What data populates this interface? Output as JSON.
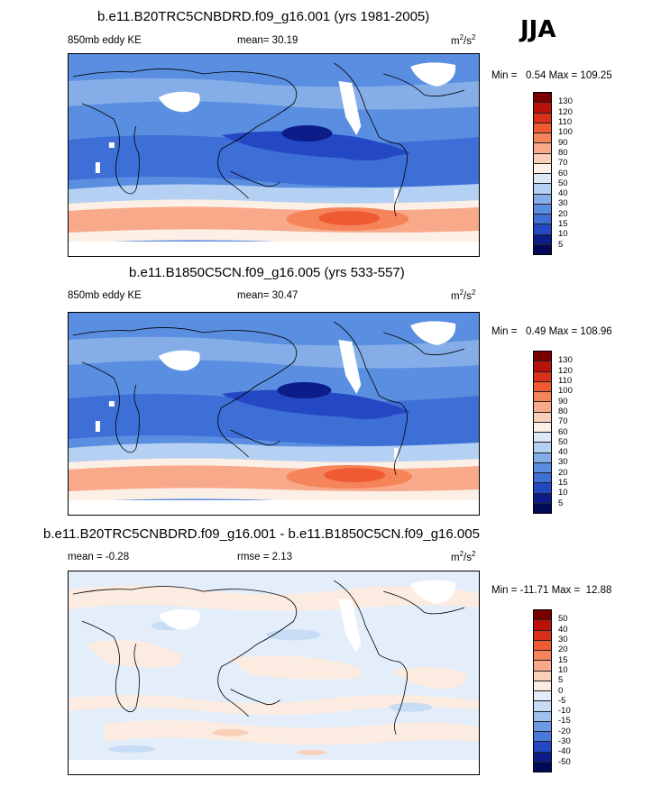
{
  "season": "JJA",
  "panels": [
    {
      "title": "b.e11.B20TRC5CNBDRD.f09_g16.001 (yrs 1981-2005)",
      "left_label": "850mb eddy KE",
      "center_label": "mean=  30.19",
      "units": "m²/s²",
      "minmax": "Min =   0.54 Max = 109.25",
      "colorbar_levels": [
        "130",
        "120",
        "110",
        "100",
        "90",
        "80",
        "70",
        "60",
        "50",
        "40",
        "30",
        "20",
        "15",
        "10",
        "5"
      ]
    },
    {
      "title": "b.e11.B1850C5CN.f09_g16.005 (yrs 533-557)",
      "left_label": "850mb eddy KE",
      "center_label": "mean=  30.47",
      "units": "m²/s²",
      "minmax": "Min =   0.49 Max = 108.96",
      "colorbar_levels": [
        "130",
        "120",
        "110",
        "100",
        "90",
        "80",
        "70",
        "60",
        "50",
        "40",
        "30",
        "20",
        "15",
        "10",
        "5"
      ]
    },
    {
      "title": "b.e11.B20TRC5CNBDRD.f09_g16.001 - b.e11.B1850C5CN.f09_g16.005",
      "left_label": "mean = -0.28",
      "center_label": "rmse =   2.13",
      "units": "m²/s²",
      "minmax": "Min = -11.71 Max =  12.88",
      "colorbar_levels": [
        "50",
        "40",
        "30",
        "20",
        "15",
        "10",
        "5",
        "0",
        "-5",
        "-10",
        "-15",
        "-20",
        "-30",
        "-40",
        "-50"
      ]
    }
  ],
  "colors": {
    "abs_scale": [
      "#7a0000",
      "#b8120a",
      "#d9301b",
      "#ef5a33",
      "#f5845a",
      "#f7a98a",
      "#f8d0ba",
      "#fbefe6",
      "#d9e9f8",
      "#b4d0f2",
      "#85aee8",
      "#5a8ee0",
      "#3e6fd7",
      "#2448c3",
      "#0c1d8a",
      "#020a57"
    ],
    "diff_scale": [
      "#7a0000",
      "#b8120a",
      "#d9301b",
      "#ef5a33",
      "#f5845a",
      "#f7a98a",
      "#f8d0ba",
      "#fbebe0",
      "#e3eefa",
      "#c7dcf5",
      "#9fc1ee",
      "#6f99e4",
      "#4a78da",
      "#2448c3",
      "#0c1d8a",
      "#020a57"
    ]
  }
}
